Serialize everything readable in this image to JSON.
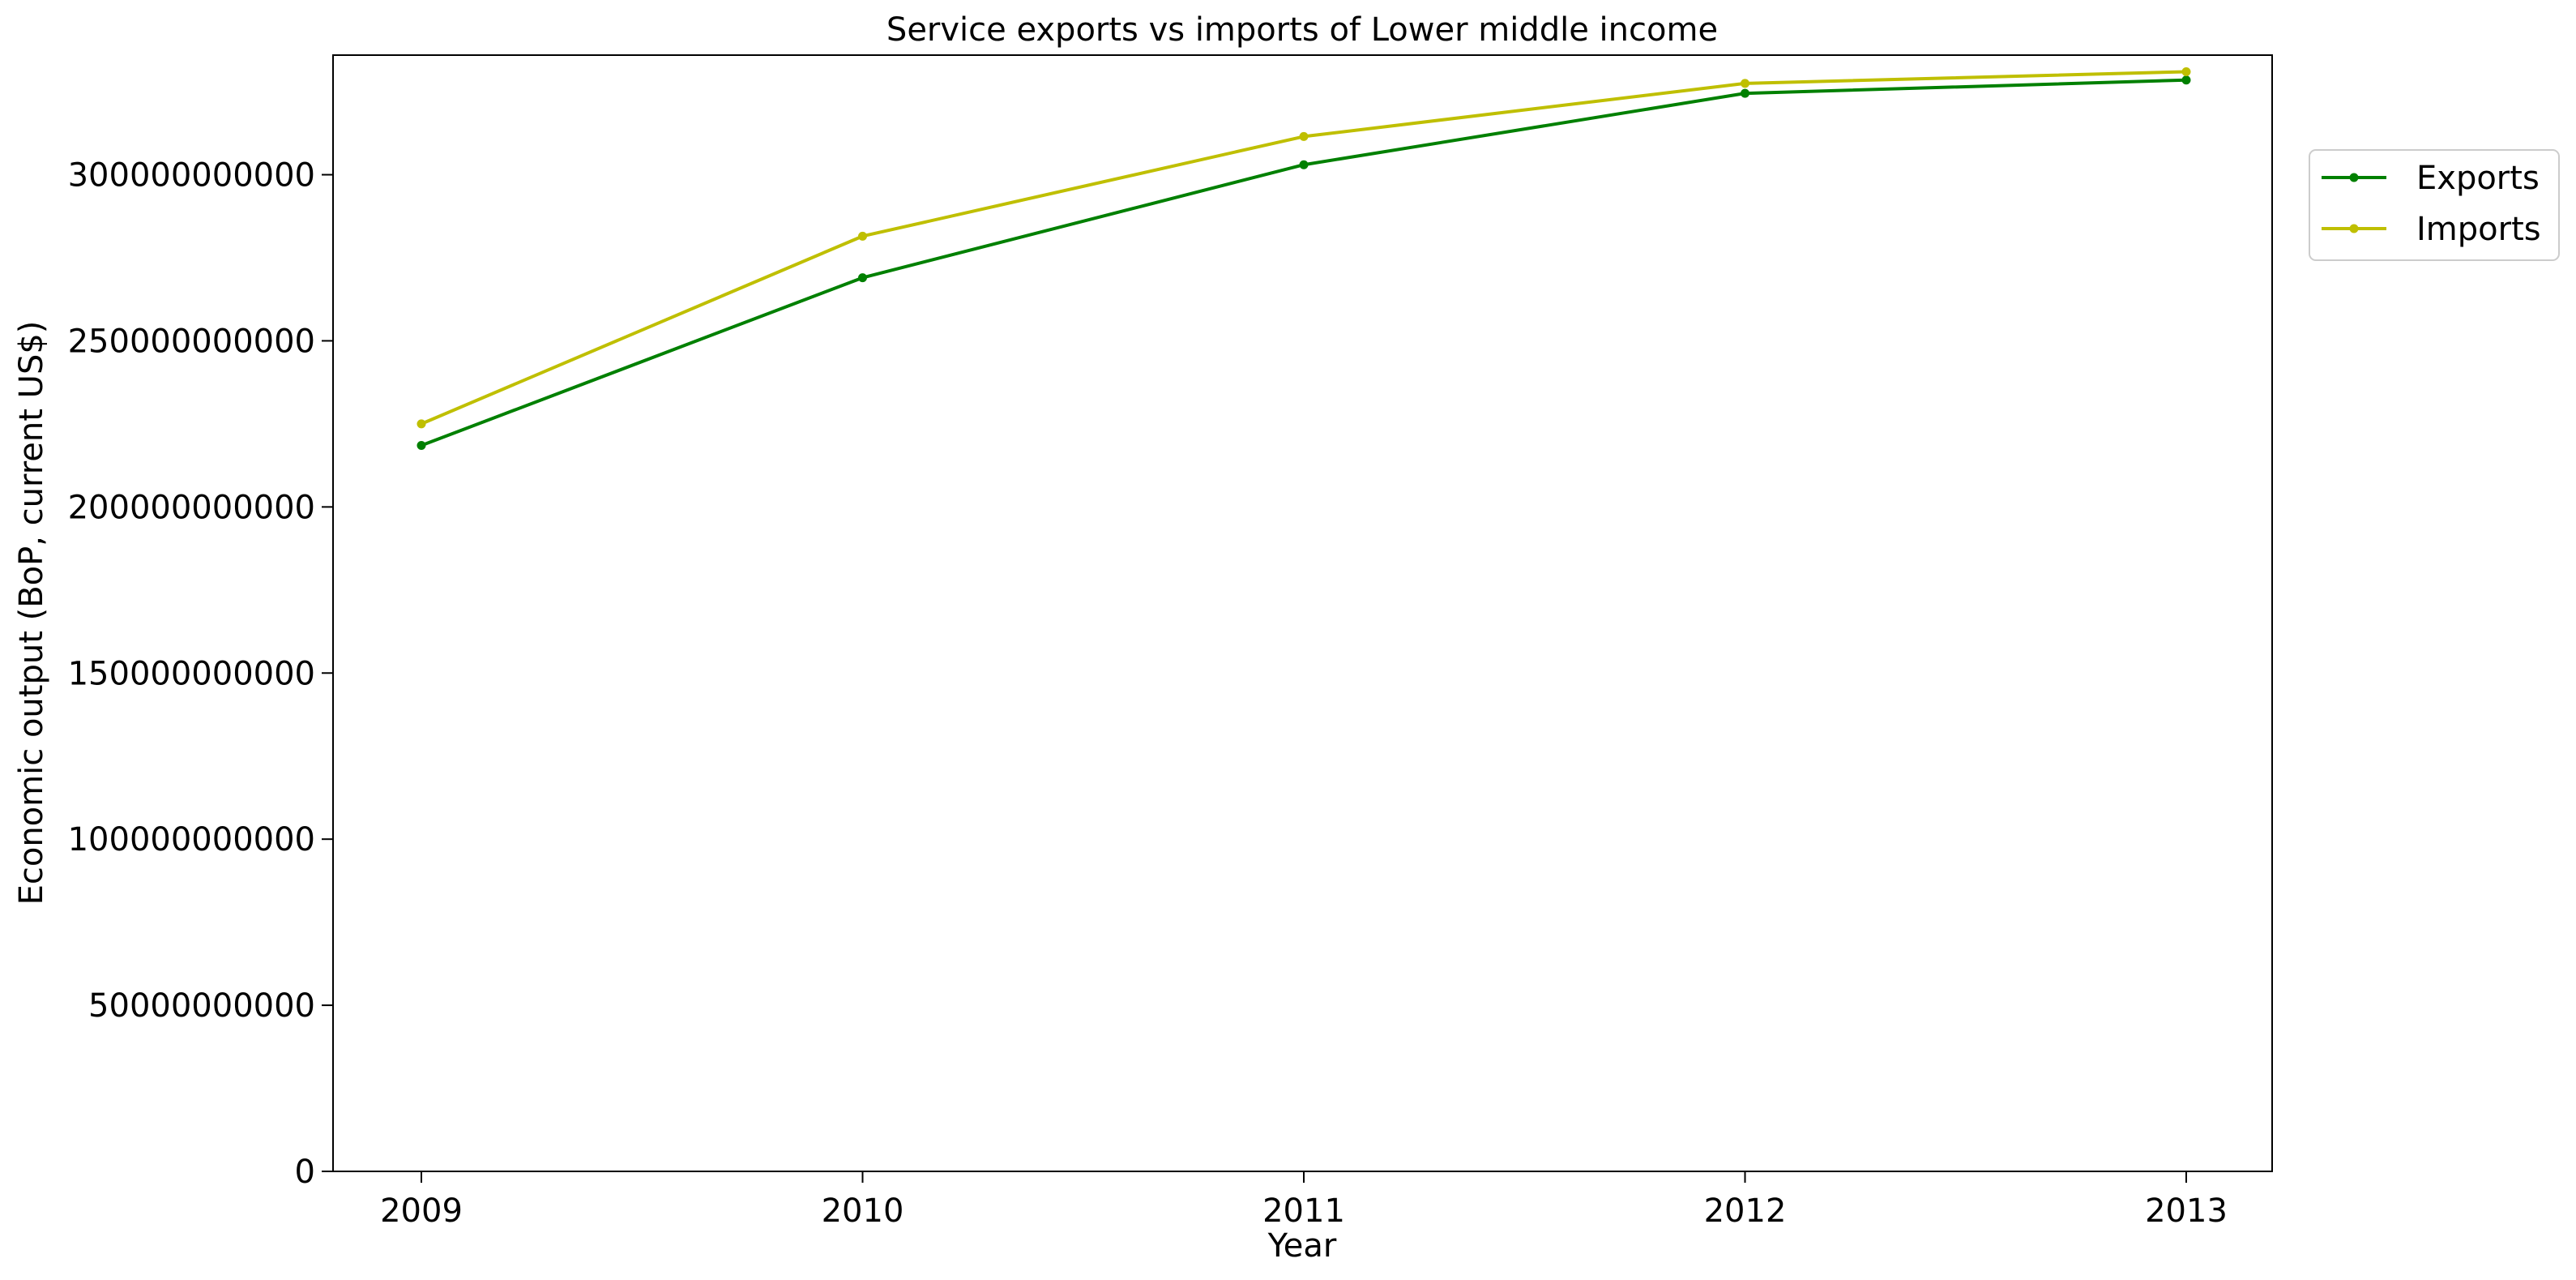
{
  "chart_data": {
    "type": "line",
    "title": "Service exports vs imports of Lower middle income",
    "xlabel": "Year",
    "ylabel": "Economic output (BoP, current US$)",
    "x": [
      2009,
      2010,
      2011,
      2012,
      2013
    ],
    "x_tick_labels": [
      "2009",
      "2010",
      "2011",
      "2012",
      "2013"
    ],
    "ylim": [
      0,
      336000000000
    ],
    "y_ticks": [
      0,
      50000000000,
      100000000000,
      150000000000,
      200000000000,
      250000000000,
      300000000000
    ],
    "y_tick_labels": [
      "0",
      "50000000000",
      "100000000000",
      "150000000000",
      "200000000000",
      "250000000000",
      "300000000000"
    ],
    "series": [
      {
        "name": "Exports",
        "color": "#008000",
        "values": [
          218500000000,
          269000000000,
          303000000000,
          324500000000,
          328500000000
        ]
      },
      {
        "name": "Imports",
        "color": "#bfbf00",
        "values": [
          225000000000,
          281500000000,
          311500000000,
          327500000000,
          331000000000
        ]
      }
    ],
    "grid": false,
    "legend_position": "outside-right-top"
  }
}
